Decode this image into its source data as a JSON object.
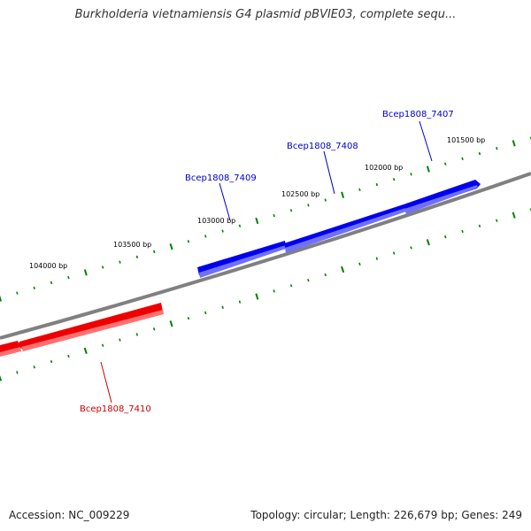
{
  "title": "Burkholderia vietnamiensis G4 plasmid pBVIE03, complete sequ...",
  "colors": {
    "backbone": "#808080",
    "forward_gene": "#0000ff",
    "reverse_gene": "#ff0000",
    "tick": "#008000"
  },
  "ticks": [
    "101500 bp",
    "102000 bp",
    "102500 bp",
    "103000 bp",
    "103500 bp",
    "104000 bp"
  ],
  "genes": [
    {
      "name": "Bcep1808_7407",
      "strand": "forward"
    },
    {
      "name": "Bcep1808_7408",
      "strand": "forward"
    },
    {
      "name": "Bcep1808_7409",
      "strand": "forward"
    },
    {
      "name": "Bcep1808_7410",
      "strand": "reverse"
    }
  ],
  "footer": {
    "accession": "Accession: NC_009229",
    "summary": "Topology: circular; Length: 226,679 bp; Genes: 249"
  }
}
